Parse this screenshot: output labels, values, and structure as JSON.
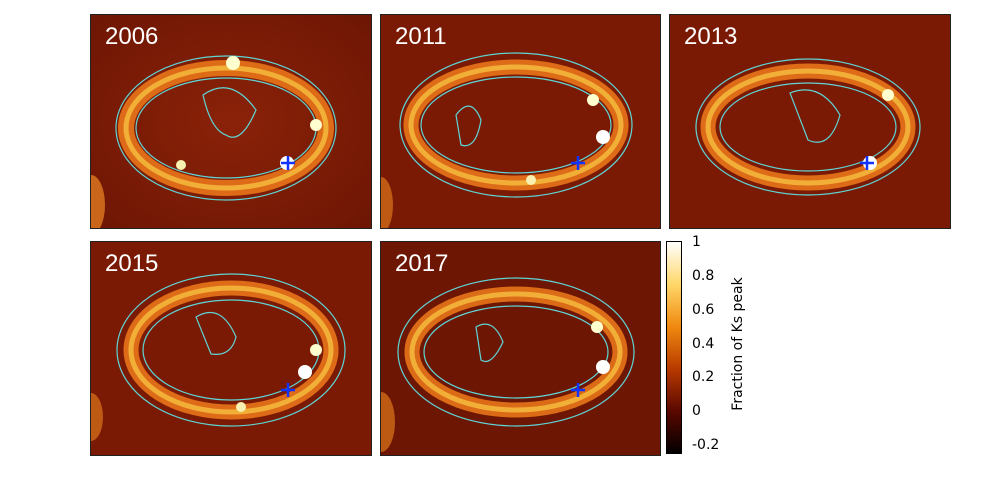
{
  "panels": [
    {
      "year": "2006"
    },
    {
      "year": "2011"
    },
    {
      "year": "2013"
    },
    {
      "year": "2015"
    },
    {
      "year": "2017"
    }
  ],
  "colorbar": {
    "title": "Fraction of Ks peak",
    "ticks": [
      "1",
      "0.8",
      "0.6",
      "0.4",
      "0.2",
      "0",
      "-0.2"
    ],
    "min": -0.2,
    "max": 1,
    "colors": [
      "#000000",
      "#5a0800",
      "#b83a00",
      "#f08a10",
      "#ffd86a",
      "#ffffff"
    ]
  },
  "colors": {
    "background": "#7a1a05",
    "contour": "#5fd4d4",
    "marker": "#1133ff"
  },
  "icons": {
    "marker": "plus-marker-icon"
  }
}
